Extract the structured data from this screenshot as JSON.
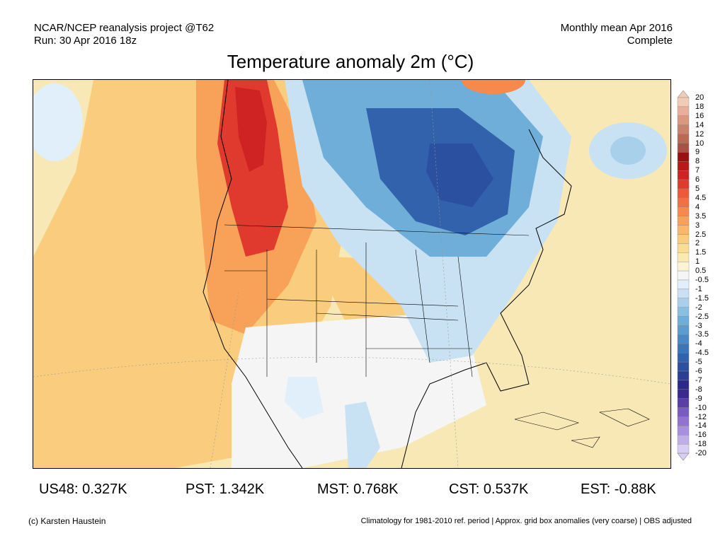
{
  "header": {
    "source": "NCAR/NCEP reanalysis project @T62",
    "run": "Run: 30 Apr 2016 18z",
    "period": "Monthly mean Apr 2016",
    "status": "Complete",
    "title": "Temperature anomaly 2m (°C)"
  },
  "colorbar": {
    "labels": [
      "20",
      "18",
      "16",
      "14",
      "12",
      "10",
      "9",
      "8",
      "7",
      "6",
      "5",
      "4.5",
      "4",
      "3.5",
      "3",
      "2.5",
      "2",
      "1.5",
      "1",
      "0.5",
      "-0.5",
      "-1",
      "-1.5",
      "-2",
      "-2.5",
      "-3",
      "-3.5",
      "-4",
      "-4.5",
      "-5",
      "-6",
      "-7",
      "-8",
      "-9",
      "-10",
      "-12",
      "-14",
      "-16",
      "-18",
      "-20"
    ],
    "colors": [
      "#f2cbb5",
      "#e6b09a",
      "#d99880",
      "#c9826a",
      "#b86a55",
      "#a85245",
      "#9a1010",
      "#b81818",
      "#cf2323",
      "#e03a2e",
      "#ec5a3a",
      "#f27044",
      "#f58a4c",
      "#f7a258",
      "#f8b868",
      "#f9cc7e",
      "#fadc96",
      "#fbe9b2",
      "#fbf3d2",
      "#f5f5f5",
      "#e0eff9",
      "#c8e2f3",
      "#a9d0ea",
      "#8bbfe2",
      "#70aeda",
      "#5c9ccf",
      "#4b88c4",
      "#3e74b8",
      "#3362ac",
      "#2c50a0",
      "#2a3e92",
      "#2c2a86",
      "#3a2a8e",
      "#5a3ea6",
      "#7a5cc0",
      "#9274d0",
      "#a890de",
      "#c0aee8",
      "#d8cdf2"
    ]
  },
  "map": {
    "region": "North America",
    "anomaly_colors": {
      "strong_warm": "#e03a2e",
      "warm": "#f7a258",
      "mild_warm": "#fbe9b2",
      "neutral": "#f5f5f5",
      "cool": "#a9d0ea",
      "cold": "#3362ac"
    }
  },
  "stats": {
    "us48": "US48: 0.327K",
    "pst": "PST: 1.342K",
    "mst": "MST: 0.768K",
    "cst": "CST: 0.537K",
    "est": "EST: -0.88K"
  },
  "footer": {
    "copyright": "(c) Karsten Haustein",
    "note": "Climatology for 1981-2010 ref. period | Approx. grid box anomalies (very coarse) | OBS adjusted"
  }
}
